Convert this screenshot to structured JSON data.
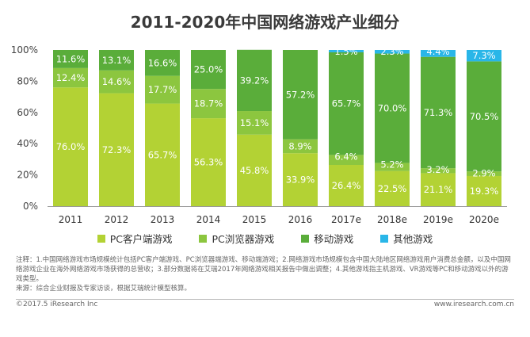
{
  "chart_data": {
    "type": "bar",
    "stacked": true,
    "title": "2011-2020年中国网络游戏产业细分",
    "categories": [
      "2011",
      "2012",
      "2013",
      "2014",
      "2015",
      "2016",
      "2017e",
      "2018e",
      "2019e",
      "2020e"
    ],
    "series": [
      {
        "name": "PC客户端游戏",
        "color": "#b3d234",
        "values": [
          76.0,
          72.3,
          65.7,
          56.3,
          45.8,
          33.9,
          26.4,
          22.5,
          21.1,
          19.3
        ]
      },
      {
        "name": "PC浏览器游戏",
        "color": "#8cc63f",
        "values": [
          12.4,
          14.6,
          17.7,
          18.7,
          15.1,
          8.9,
          6.4,
          5.2,
          3.2,
          2.9
        ]
      },
      {
        "name": "移动游戏",
        "color": "#5aad3a",
        "values": [
          11.6,
          13.1,
          16.6,
          25.0,
          39.2,
          57.2,
          65.7,
          70.0,
          71.3,
          70.5
        ]
      },
      {
        "name": "其他游戏",
        "color": "#29b6e8",
        "values": [
          0,
          0,
          0,
          0,
          0,
          0,
          1.5,
          2.3,
          4.4,
          7.3
        ]
      }
    ],
    "y_ticks": [
      "0%",
      "20%",
      "40%",
      "60%",
      "80%",
      "100%"
    ],
    "ylim": [
      0,
      100
    ],
    "value_suffix": "%",
    "grid": false,
    "legend_position": "bottom"
  },
  "notes": {
    "text": "注释：1.中国网络游戏市场规模统计包括PC客户端游戏、PC浏览器端游戏、移动端游戏；2.网络游戏市场规模包含中国大陆地区网络游戏用户消费总金额，以及中国网络游戏企业在海外网络游戏市场获得的总营收；3.部分数据将在艾瑞2017年网络游戏相关报告中做出调整；4.其他游戏指主机游戏、VR游戏等PC和移动游戏以外的游戏类型。",
    "source": "来源：综合企业财报及专家访谈，根据艾瑞统计模型核算。"
  },
  "footer": {
    "left": "©2017.5 iResearch Inc",
    "right": "www.iresearch.com.cn"
  }
}
